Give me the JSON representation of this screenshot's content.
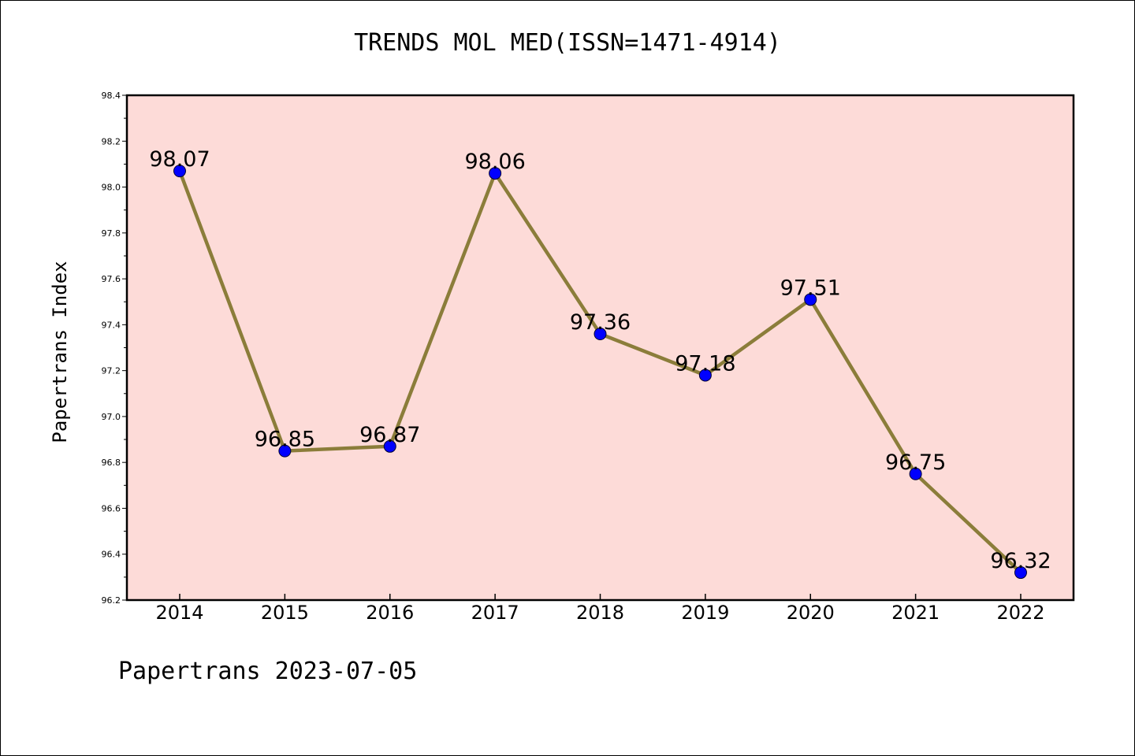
{
  "chart_data": {
    "type": "line",
    "title": "TRENDS MOL MED(ISSN=1471-4914)",
    "xlabel": "",
    "ylabel": "Papertrans Index",
    "categories": [
      "2014",
      "2015",
      "2016",
      "2017",
      "2018",
      "2019",
      "2020",
      "2021",
      "2022"
    ],
    "series": [
      {
        "values": [
          98.07,
          96.85,
          96.87,
          98.06,
          97.36,
          97.18,
          97.51,
          96.75,
          96.32
        ],
        "labels": [
          "98.07",
          "96.85",
          "96.87",
          "98.06",
          "97.36",
          "97.18",
          "97.51",
          "96.75",
          "96.32"
        ]
      }
    ],
    "ylim": [
      96.2,
      98.4
    ],
    "yticks": [
      "96.2",
      "96.4",
      "96.6",
      "96.8",
      "97.0",
      "97.2",
      "97.4",
      "97.6",
      "97.8",
      "98.0",
      "98.2",
      "98.4"
    ],
    "grid": false,
    "colors": {
      "plot_background": "#fddbd8",
      "line": "#8b7d3a",
      "marker": "#0000ff"
    }
  },
  "footer": "Papertrans 2023-07-05"
}
